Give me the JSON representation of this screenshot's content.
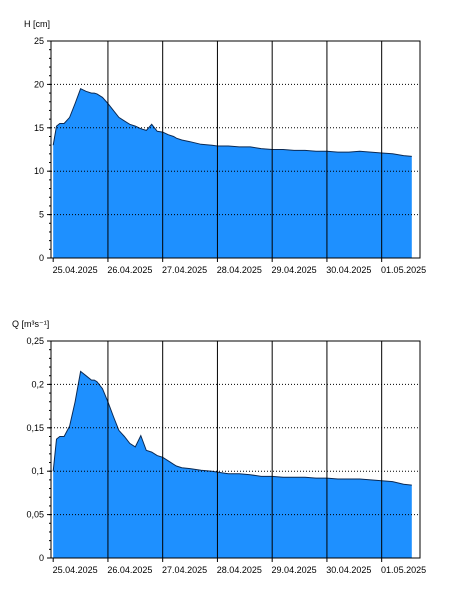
{
  "chart_data": [
    {
      "type": "area",
      "ylabel": "H [cm]",
      "ylim": [
        0,
        25
      ],
      "yticks": [
        0,
        5,
        10,
        15,
        20,
        25
      ],
      "ytick_labels": [
        "0",
        "5",
        "10",
        "15",
        "20",
        "25"
      ],
      "xticks": [
        "25.04.2025",
        "26.04.2025",
        "27.04.2025",
        "28.04.2025",
        "29.04.2025",
        "30.04.2025",
        "01.05.2025"
      ],
      "x_range_days": [
        -0.04,
        6.7
      ],
      "grid": "dotted horizontal, solid vertical at day boundaries",
      "fill_color": "#1e90ff",
      "series": [
        {
          "x_days": [
            0,
            0.06,
            0.12,
            0.2,
            0.3,
            0.4,
            0.5,
            0.6,
            0.7,
            0.75,
            0.8,
            0.9,
            1.0,
            1.1,
            1.2,
            1.3,
            1.4,
            1.5,
            1.6,
            1.7,
            1.8,
            1.9,
            2.0,
            2.1,
            2.2,
            2.25,
            2.35,
            2.5,
            2.7,
            2.9,
            3.0,
            3.2,
            3.4,
            3.6,
            3.8,
            4.0,
            4.2,
            4.4,
            4.6,
            4.8,
            5.0,
            5.2,
            5.4,
            5.6,
            5.8,
            6.0,
            6.2,
            6.4,
            6.55
          ],
          "y": [
            13.0,
            15.2,
            15.5,
            15.5,
            16.2,
            17.8,
            19.5,
            19.2,
            19.0,
            19.0,
            18.9,
            18.5,
            17.8,
            17.0,
            16.2,
            15.8,
            15.4,
            15.2,
            14.9,
            14.7,
            15.4,
            14.6,
            14.5,
            14.2,
            14.0,
            13.8,
            13.6,
            13.4,
            13.1,
            13.0,
            12.9,
            12.9,
            12.8,
            12.8,
            12.6,
            12.5,
            12.5,
            12.4,
            12.4,
            12.3,
            12.3,
            12.2,
            12.2,
            12.3,
            12.2,
            12.1,
            12.0,
            11.8,
            11.7
          ]
        }
      ]
    },
    {
      "type": "area",
      "ylabel": "Q [m³s⁻¹]",
      "ylim": [
        0,
        0.25
      ],
      "yticks": [
        0,
        0.05,
        0.1,
        0.15,
        0.2,
        0.25
      ],
      "ytick_labels": [
        "0",
        "0,05",
        "0,1",
        "0,15",
        "0,2",
        "0,25"
      ],
      "xticks": [
        "25.04.2025",
        "26.04.2025",
        "27.04.2025",
        "28.04.2025",
        "29.04.2025",
        "30.04.2025",
        "01.05.2025"
      ],
      "x_range_days": [
        -0.04,
        6.7
      ],
      "grid": "dotted horizontal, solid vertical at day boundaries",
      "fill_color": "#1e90ff",
      "series": [
        {
          "x_days": [
            0,
            0.06,
            0.12,
            0.2,
            0.3,
            0.4,
            0.5,
            0.6,
            0.7,
            0.75,
            0.8,
            0.9,
            1.0,
            1.1,
            1.2,
            1.3,
            1.4,
            1.5,
            1.6,
            1.7,
            1.8,
            1.9,
            2.0,
            2.1,
            2.2,
            2.25,
            2.35,
            2.5,
            2.7,
            2.9,
            3.0,
            3.2,
            3.4,
            3.6,
            3.8,
            4.0,
            4.2,
            4.4,
            4.6,
            4.8,
            5.0,
            5.2,
            5.4,
            5.6,
            5.8,
            6.0,
            6.2,
            6.4,
            6.55
          ],
          "y": [
            0.1,
            0.137,
            0.14,
            0.14,
            0.152,
            0.18,
            0.215,
            0.21,
            0.205,
            0.205,
            0.203,
            0.195,
            0.18,
            0.163,
            0.147,
            0.14,
            0.132,
            0.128,
            0.141,
            0.124,
            0.122,
            0.118,
            0.116,
            0.112,
            0.108,
            0.106,
            0.104,
            0.103,
            0.101,
            0.1,
            0.099,
            0.097,
            0.097,
            0.096,
            0.094,
            0.094,
            0.093,
            0.093,
            0.093,
            0.092,
            0.092,
            0.091,
            0.091,
            0.091,
            0.09,
            0.089,
            0.088,
            0.085,
            0.084
          ]
        }
      ]
    }
  ]
}
